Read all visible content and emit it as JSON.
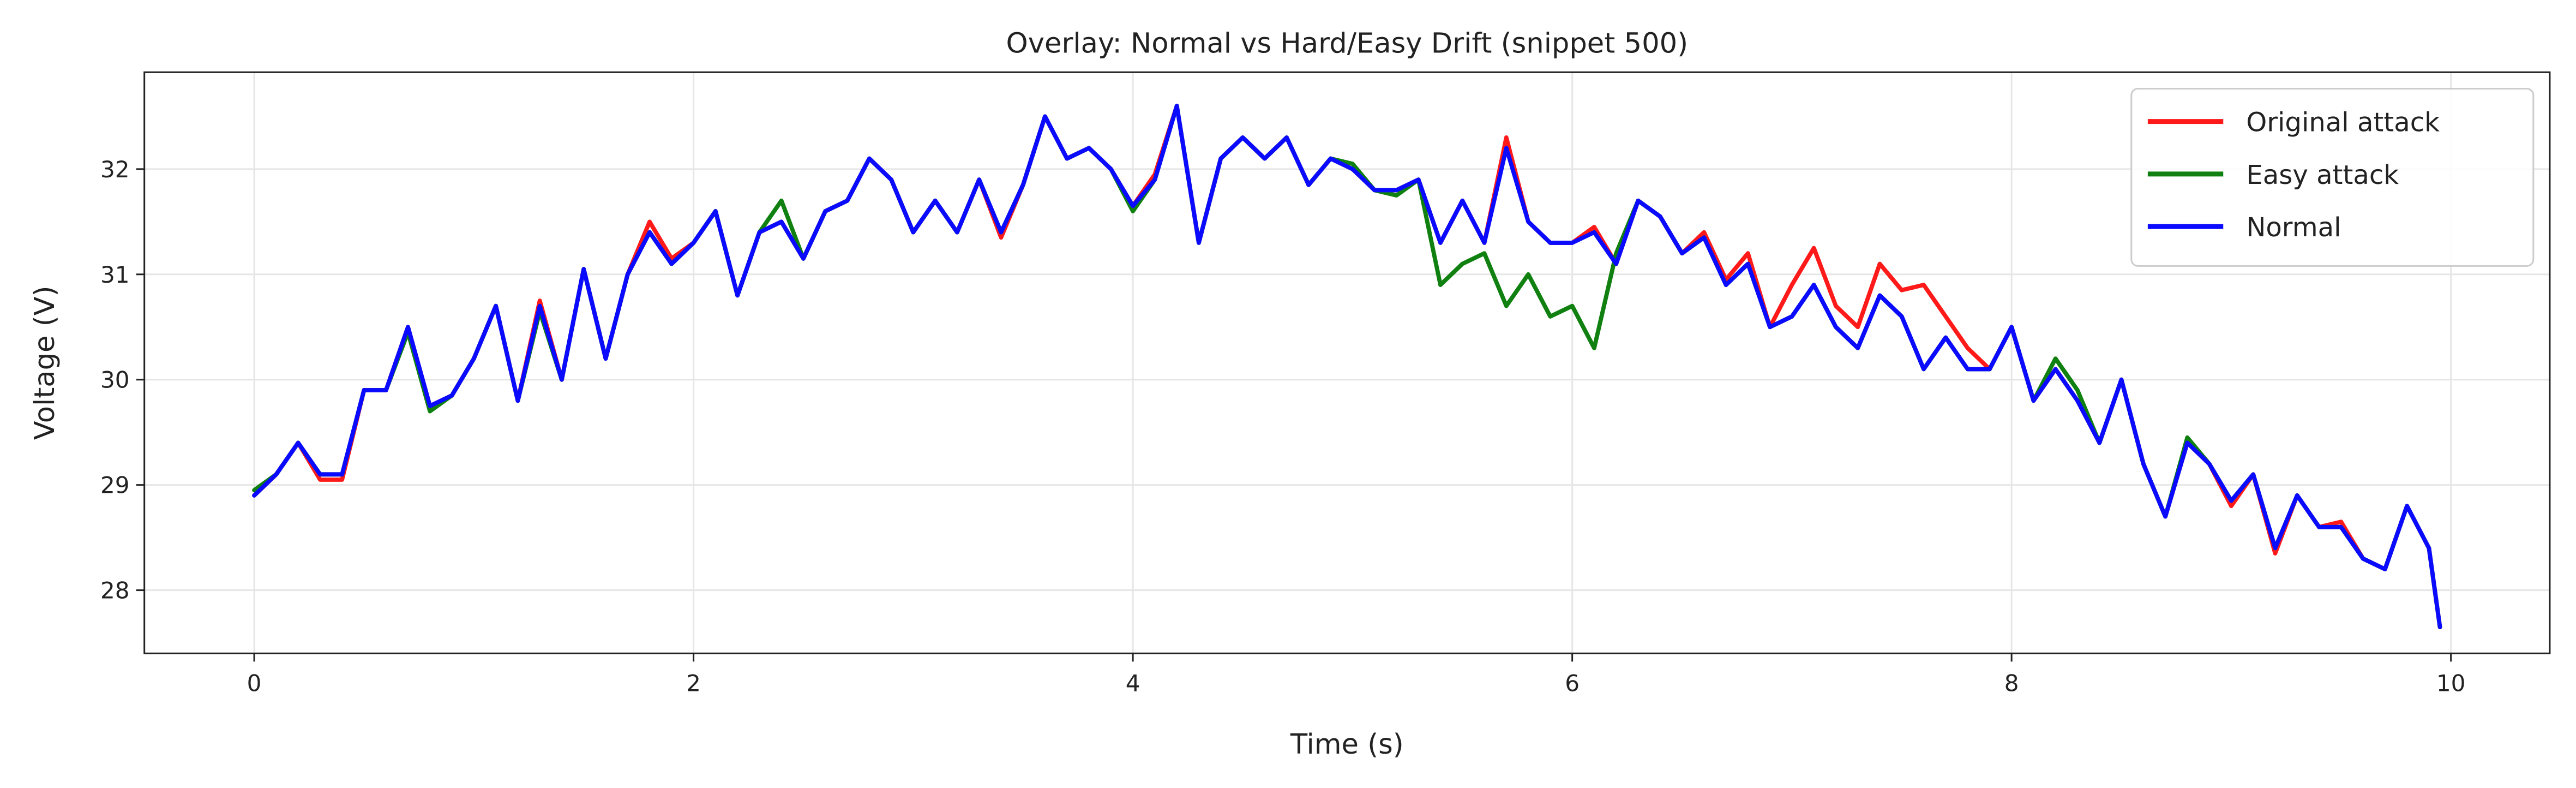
{
  "chart_data": {
    "type": "line",
    "title": "Overlay: Normal vs Hard/Easy Drift (snippet 500)",
    "x_label": "Time (s)",
    "y_label": "Voltage (V)",
    "x": [
      0,
      0.1,
      0.2,
      0.3,
      0.4,
      0.5,
      0.6,
      0.7,
      0.8,
      0.9,
      1,
      1.1,
      1.2,
      1.3,
      1.4,
      1.5,
      1.6,
      1.7,
      1.8,
      1.9,
      2,
      2.1,
      2.2,
      2.3,
      2.4,
      2.5,
      2.6,
      2.7,
      2.8,
      2.9,
      3,
      3.1,
      3.2,
      3.3,
      3.4,
      3.5,
      3.6,
      3.7,
      3.8,
      3.9,
      4,
      4.1,
      4.2,
      4.3,
      4.4,
      4.5,
      4.6,
      4.7,
      4.8,
      4.9,
      5,
      5.1,
      5.2,
      5.3,
      5.4,
      5.5,
      5.6,
      5.7,
      5.8,
      5.9,
      6,
      6.1,
      6.2,
      6.3,
      6.4,
      6.5,
      6.6,
      6.7,
      6.8,
      6.9,
      7,
      7.1,
      7.2,
      7.3,
      7.4,
      7.5,
      7.6,
      7.7,
      7.8,
      7.9,
      8,
      8.1,
      8.2,
      8.3,
      8.4,
      8.5,
      8.6,
      8.7,
      8.8,
      8.9,
      9,
      9.1,
      9.2,
      9.3,
      9.4,
      9.5,
      9.6,
      9.7,
      9.8,
      9.9,
      9.95
    ],
    "series": [
      {
        "name": "Original attack",
        "color": "#ff1a1a",
        "values": [
          28.9,
          29.1,
          29.4,
          29.05,
          29.05,
          29.9,
          29.9,
          30.5,
          29.75,
          29.85,
          30.2,
          30.7,
          29.8,
          30.75,
          30.0,
          31.05,
          30.2,
          31.0,
          31.5,
          31.15,
          31.3,
          31.6,
          30.8,
          31.4,
          31.5,
          31.15,
          31.6,
          31.7,
          32.1,
          31.9,
          31.4,
          31.7,
          31.4,
          31.9,
          31.35,
          31.85,
          32.5,
          32.1,
          32.2,
          32.0,
          31.65,
          31.95,
          32.6,
          31.3,
          32.1,
          32.3,
          32.1,
          32.3,
          31.85,
          32.1,
          32.0,
          31.8,
          31.8,
          31.9,
          31.3,
          31.7,
          31.3,
          32.3,
          31.5,
          31.3,
          31.3,
          31.45,
          31.1,
          31.7,
          31.55,
          31.2,
          31.4,
          30.95,
          31.2,
          30.5,
          30.9,
          31.25,
          30.7,
          30.5,
          31.1,
          30.85,
          30.9,
          30.6,
          30.3,
          30.1,
          30.5,
          29.8,
          30.1,
          29.8,
          29.4,
          30.0,
          29.2,
          28.7,
          29.4,
          29.2,
          28.8,
          29.1,
          28.35,
          28.9,
          28.6,
          28.65,
          28.3,
          28.2,
          28.8,
          28.4,
          27.65
        ]
      },
      {
        "name": "Easy attack",
        "color": "#108010",
        "values": [
          28.95,
          29.1,
          29.4,
          29.1,
          29.1,
          29.9,
          29.9,
          30.45,
          29.7,
          29.85,
          30.2,
          30.7,
          29.8,
          30.65,
          30.0,
          31.05,
          30.2,
          31.0,
          31.4,
          31.1,
          31.3,
          31.6,
          30.8,
          31.4,
          31.7,
          31.15,
          31.6,
          31.7,
          32.1,
          31.9,
          31.4,
          31.7,
          31.4,
          31.9,
          31.4,
          31.85,
          32.5,
          32.1,
          32.2,
          32.0,
          31.6,
          31.9,
          32.6,
          31.3,
          32.1,
          32.3,
          32.1,
          32.3,
          31.85,
          32.1,
          32.05,
          31.8,
          31.75,
          31.9,
          30.9,
          31.1,
          31.2,
          30.7,
          31.0,
          30.6,
          30.7,
          30.3,
          31.2,
          31.7,
          31.55,
          31.2,
          31.35,
          30.9,
          31.1,
          30.5,
          30.6,
          30.9,
          30.5,
          30.3,
          30.8,
          30.6,
          30.1,
          30.4,
          30.1,
          30.1,
          30.5,
          29.8,
          30.2,
          29.9,
          29.4,
          30.0,
          29.2,
          28.7,
          29.45,
          29.2,
          28.85,
          29.1,
          28.4,
          28.9,
          28.6,
          28.6,
          28.3,
          28.2,
          28.8,
          28.4,
          27.65
        ]
      },
      {
        "name": "Normal",
        "color": "#0a0aff",
        "values": [
          28.9,
          29.1,
          29.4,
          29.1,
          29.1,
          29.9,
          29.9,
          30.5,
          29.75,
          29.85,
          30.2,
          30.7,
          29.8,
          30.7,
          30.0,
          31.05,
          30.2,
          31.0,
          31.4,
          31.1,
          31.3,
          31.6,
          30.8,
          31.4,
          31.5,
          31.15,
          31.6,
          31.7,
          32.1,
          31.9,
          31.4,
          31.7,
          31.4,
          31.9,
          31.4,
          31.85,
          32.5,
          32.1,
          32.2,
          32.0,
          31.65,
          31.9,
          32.6,
          31.3,
          32.1,
          32.3,
          32.1,
          32.3,
          31.85,
          32.1,
          32.0,
          31.8,
          31.8,
          31.9,
          31.3,
          31.7,
          31.3,
          32.2,
          31.5,
          31.3,
          31.3,
          31.4,
          31.1,
          31.7,
          31.55,
          31.2,
          31.35,
          30.9,
          31.1,
          30.5,
          30.6,
          30.9,
          30.5,
          30.3,
          30.8,
          30.6,
          30.1,
          30.4,
          30.1,
          30.1,
          30.5,
          29.8,
          30.1,
          29.8,
          29.4,
          30.0,
          29.2,
          28.7,
          29.4,
          29.2,
          28.85,
          29.1,
          28.4,
          28.9,
          28.6,
          28.6,
          28.3,
          28.2,
          28.8,
          28.4,
          27.65
        ]
      }
    ],
    "xlim": [
      -0.5,
      10.45
    ],
    "ylim": [
      27.4,
      32.92
    ],
    "xticks": [
      0,
      2,
      4,
      6,
      8,
      10
    ],
    "yticks": [
      28,
      29,
      30,
      31,
      32
    ],
    "grid": true,
    "legend": "upper right"
  }
}
